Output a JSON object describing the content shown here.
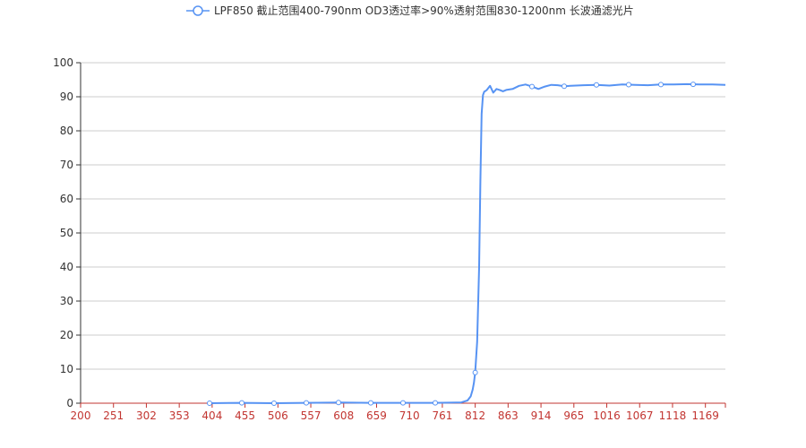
{
  "chart_data": {
    "type": "line",
    "title": "",
    "xlabel": "",
    "ylabel": "",
    "legend_position": "top-center",
    "grid": true,
    "ylim": [
      0,
      100
    ],
    "yticks": [
      "0",
      "10",
      "20",
      "30",
      "40",
      "50",
      "60",
      "70",
      "80",
      "90",
      "100"
    ],
    "xticks": [
      "200",
      "251",
      "302",
      "353",
      "404",
      "455",
      "506",
      "557",
      "608",
      "659",
      "710",
      "761",
      "812",
      "863",
      "914",
      "965",
      "1016",
      "1067",
      "1118",
      "1169"
    ],
    "xlim": [
      200,
      1200
    ],
    "series": [
      {
        "name": "LPF850 截止范围400-790nm OD3透过率>90%透射范围830-1200nm 长波通滤光片",
        "color": "#5793f3",
        "x": [
          400,
          450,
          500,
          550,
          600,
          650,
          700,
          750,
          790,
          800,
          805,
          808,
          810,
          812,
          815,
          818,
          820,
          822,
          824,
          826,
          828,
          830,
          835,
          840,
          845,
          850,
          855,
          860,
          870,
          880,
          890,
          900,
          910,
          920,
          930,
          940,
          950,
          960,
          980,
          1000,
          1020,
          1040,
          1060,
          1080,
          1100,
          1120,
          1140,
          1160,
          1180,
          1200
        ],
        "y": [
          0.0,
          0.1,
          0.0,
          0.1,
          0.2,
          0.1,
          0.1,
          0.1,
          0.2,
          0.8,
          2.0,
          4.0,
          6.0,
          9.0,
          18.0,
          40.0,
          65.0,
          85.0,
          90.5,
          91.5,
          91.7,
          92.0,
          93.2,
          91.2,
          92.3,
          92.0,
          91.6,
          92.0,
          92.3,
          93.2,
          93.6,
          93.0,
          92.3,
          93.0,
          93.5,
          93.4,
          93.1,
          93.2,
          93.4,
          93.5,
          93.3,
          93.6,
          93.5,
          93.4,
          93.6,
          93.6,
          93.7,
          93.6,
          93.6,
          93.5
        ],
        "markers_x": [
          400,
          450,
          500,
          550,
          600,
          650,
          700,
          750,
          812,
          900,
          950,
          1000,
          1050,
          1100,
          1150
        ]
      }
    ]
  }
}
